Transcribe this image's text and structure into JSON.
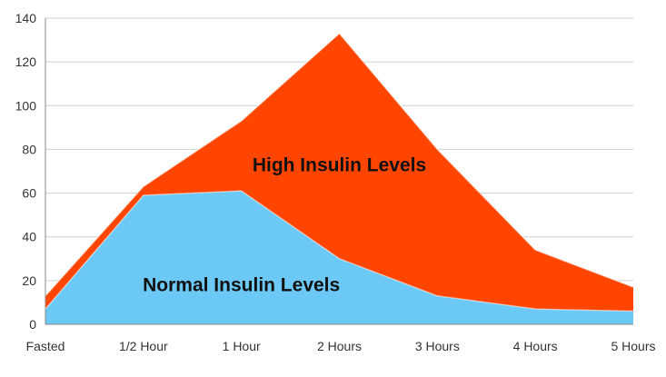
{
  "chart_data": {
    "type": "area",
    "stacked": false,
    "categories": [
      "Fasted",
      "1/2 Hour",
      "1 Hour",
      "2 Hours",
      "3 Hours",
      "4 Hours",
      "5 Hours"
    ],
    "series": [
      {
        "name": "High Insulin Levels",
        "values": [
          13,
          63,
          93,
          133,
          80,
          34,
          17
        ],
        "color": "#FF4500"
      },
      {
        "name": "Normal Insulin Levels",
        "values": [
          7,
          59,
          61,
          30,
          13,
          7,
          6
        ],
        "color": "#6CC8F5"
      }
    ],
    "ylim": [
      0,
      140
    ],
    "yticks": [
      0,
      20,
      40,
      60,
      80,
      100,
      120,
      140
    ],
    "grid": true,
    "legend": "none",
    "annotations": [
      {
        "text": "High Insulin Levels",
        "x": "2 Hours",
        "y": 73
      },
      {
        "text": "Normal Insulin Levels",
        "x": "1 Hour",
        "y": 18
      }
    ],
    "gridline_color": "#D0D0D0",
    "axis_color": "#888888"
  }
}
